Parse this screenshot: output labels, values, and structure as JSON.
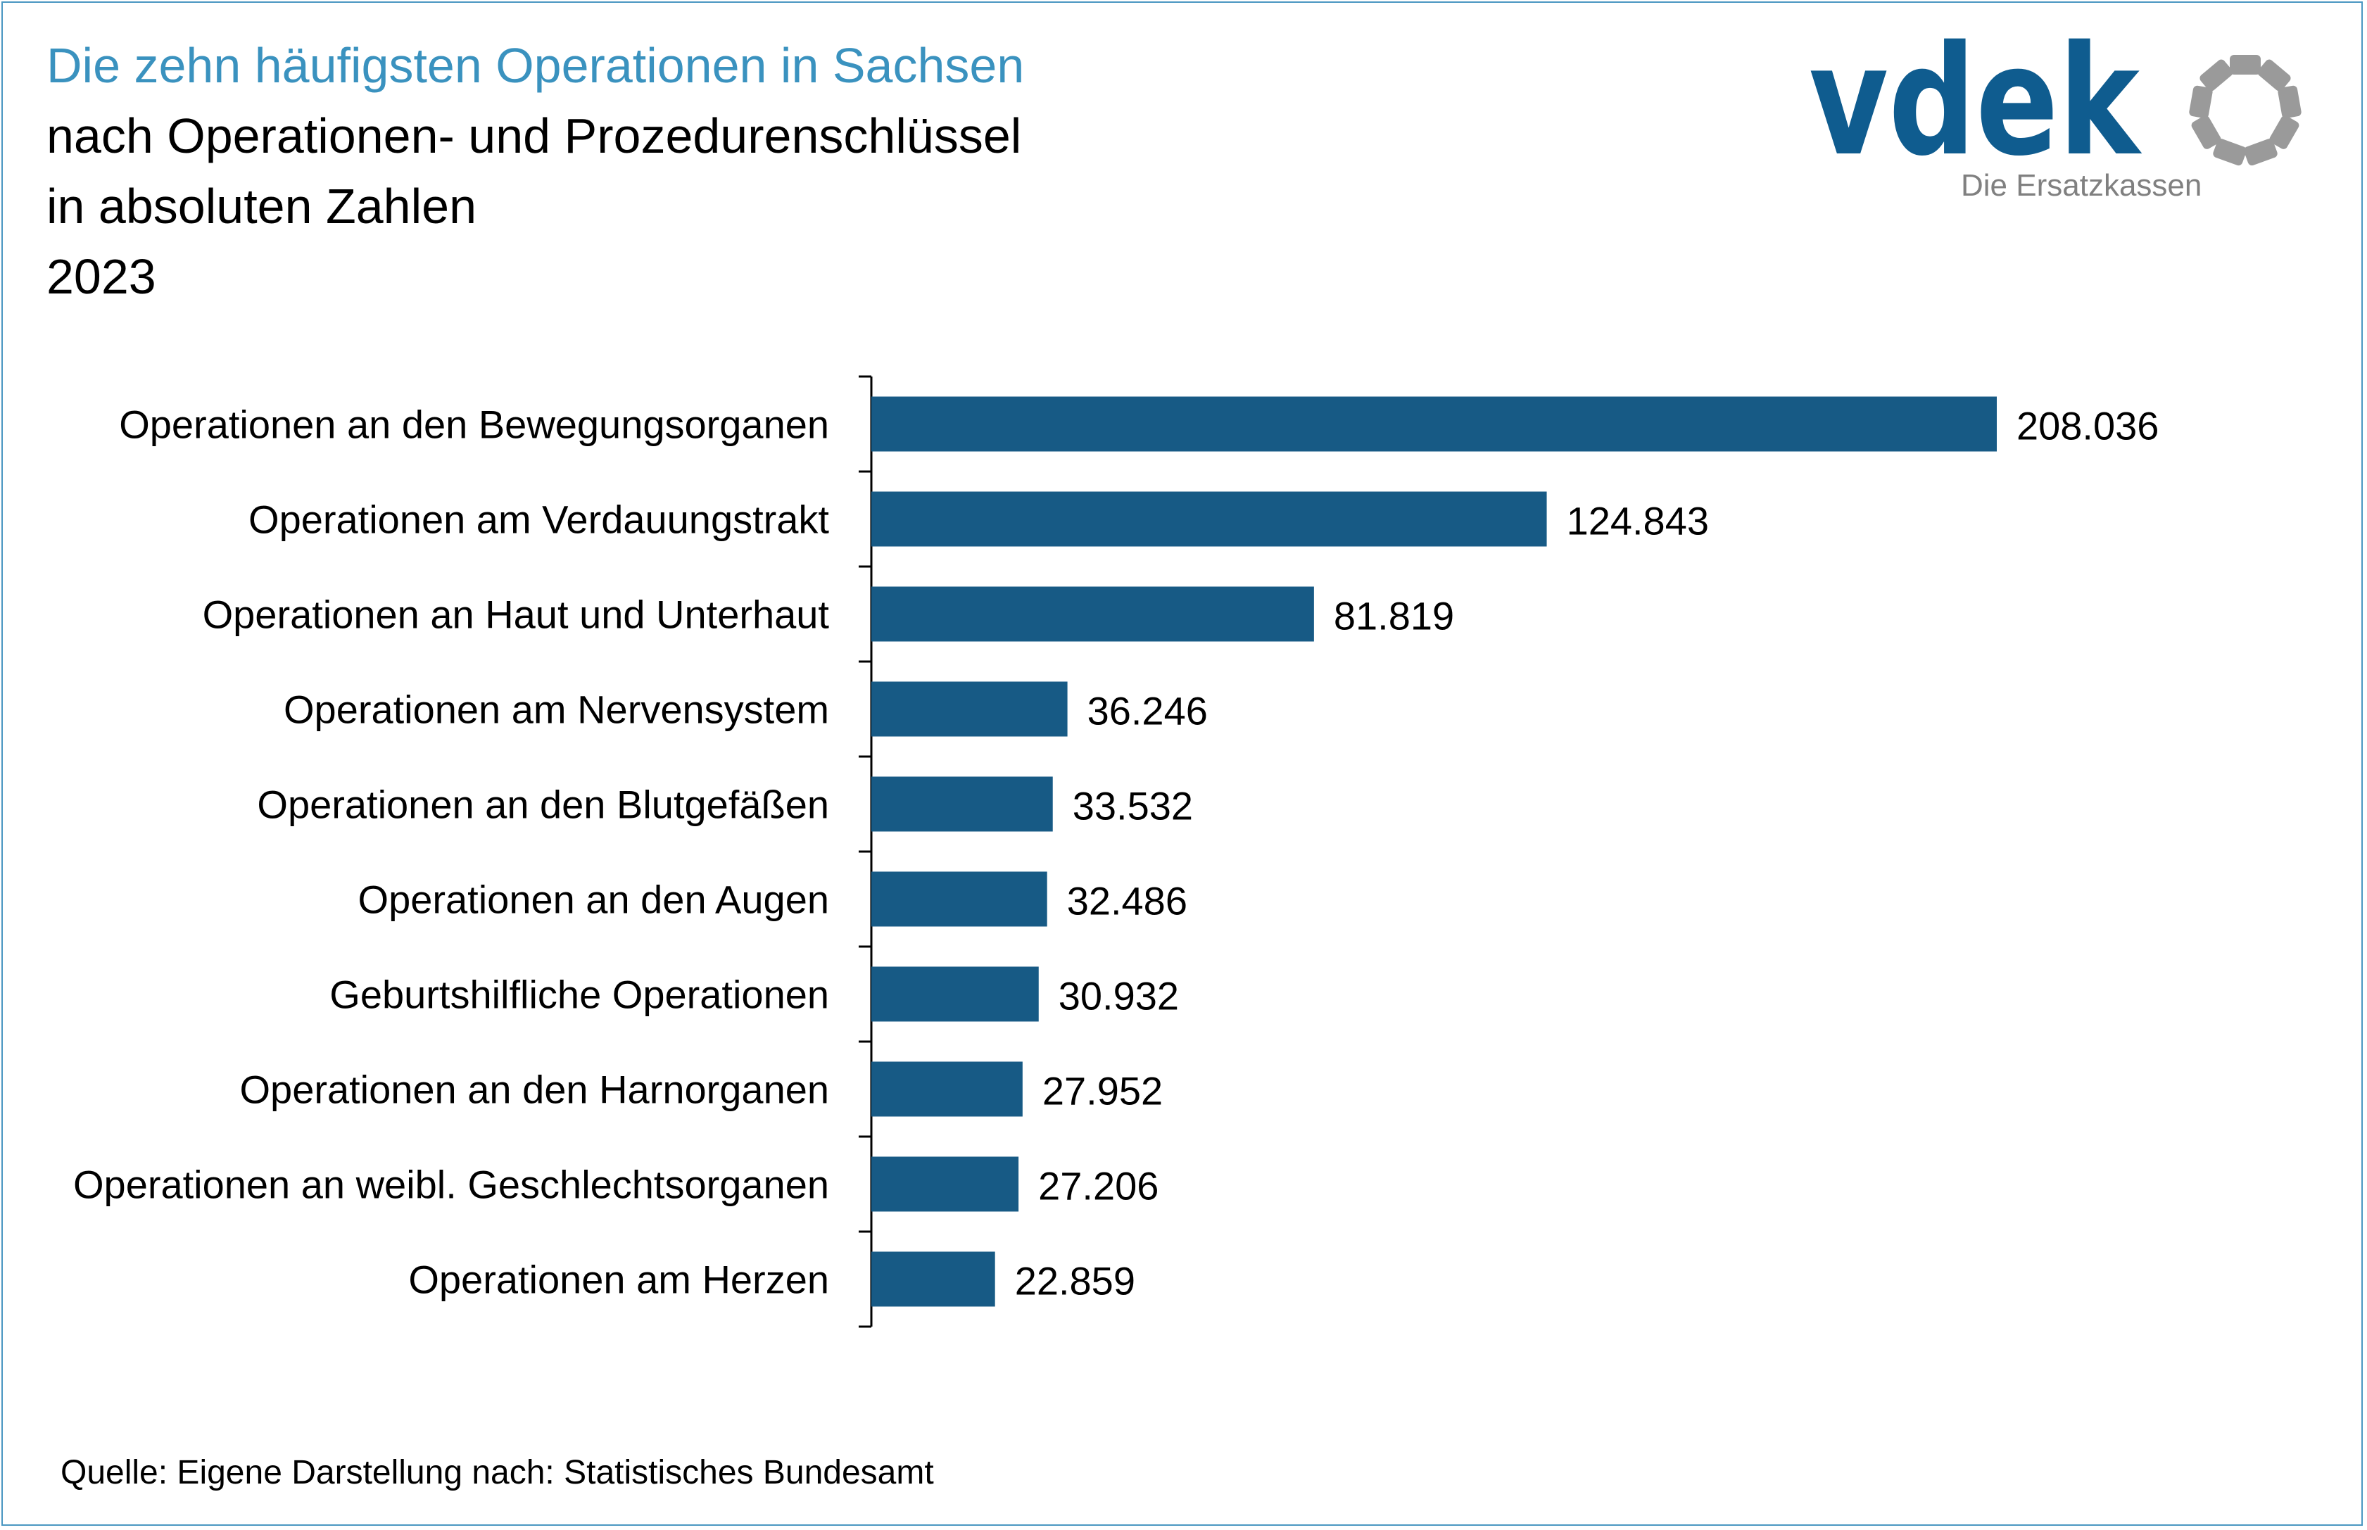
{
  "header": {
    "title": "Die zehn häufigsten Operationen in Sachsen",
    "subtitle": "nach Operationen- und Prozedurenschlüssel",
    "unit_line": "in absoluten Zahlen",
    "year": "2023"
  },
  "logo": {
    "wordmark": "vdek",
    "tagline": "Die Ersatzkassen",
    "brand_color": "#0f5c8f",
    "ring_color": "#9a9a9a"
  },
  "footer": {
    "source": "Quelle: Eigene Darstellung nach: Statistisches Bundesamt"
  },
  "colors": {
    "bar": "#175a85",
    "title_accent": "#3a92bf",
    "frame": "#4a97c2"
  },
  "chart_data": {
    "type": "bar",
    "orientation": "horizontal",
    "categories": [
      "Operationen an den Bewegungsorganen",
      "Operationen am Verdauungstrakt",
      "Operationen an Haut und Unterhaut",
      "Operationen am Nervensystem",
      "Operationen an den Blutgefäßen",
      "Operationen an den Augen",
      "Geburtshilfliche Operationen",
      "Operationen an den Harnorganen",
      "Operationen an weibl. Geschlechtsorganen",
      "Operationen am Herzen"
    ],
    "values": [
      208036,
      124843,
      81819,
      36246,
      33532,
      32486,
      30932,
      27952,
      27206,
      22859
    ],
    "value_labels": [
      "208.036",
      "124.843",
      "81.819",
      "36.246",
      "33.532",
      "32.486",
      "30.932",
      "27.952",
      "27.206",
      "22.859"
    ],
    "title": "Die zehn häufigsten Operationen in Sachsen",
    "xlabel": "",
    "ylabel": "",
    "xlim": [
      0,
      208036
    ],
    "grid": false,
    "legend": "none"
  }
}
